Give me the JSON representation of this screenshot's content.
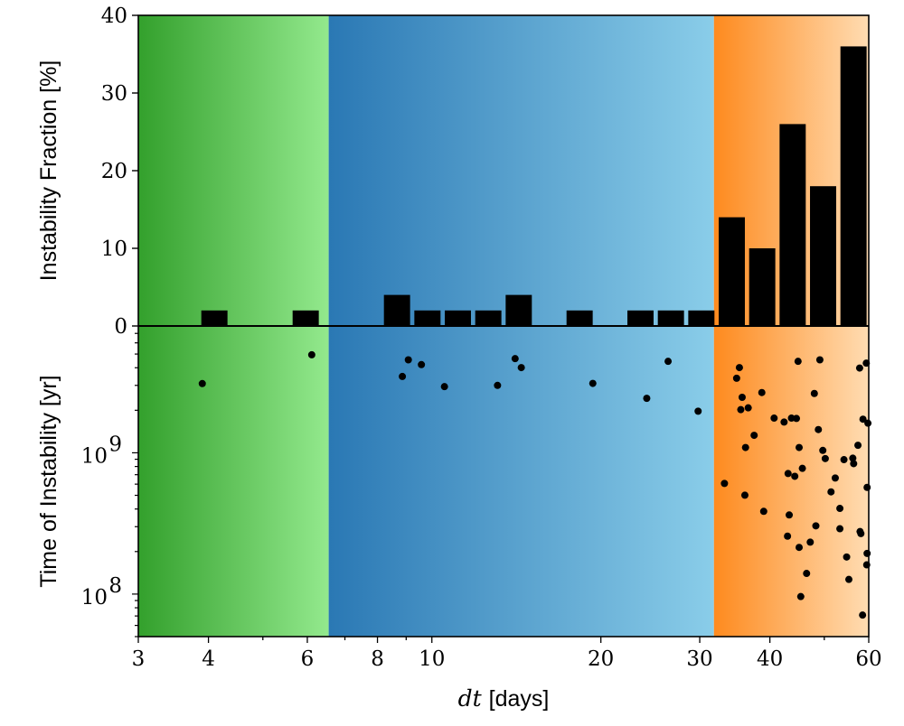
{
  "chart_data": [
    {
      "type": "bar",
      "panel": "top",
      "ylabel": "Instability Fraction [%]",
      "ylim": [
        0,
        40
      ],
      "yticks": [
        0,
        10,
        20,
        30,
        40
      ],
      "xscale": "log",
      "xlim": [
        3,
        60
      ],
      "bin_edges_log_spaced": {
        "from": 3,
        "to": 60,
        "count": 24
      },
      "values": [
        0,
        0,
        2,
        0,
        0,
        2,
        0,
        0,
        4,
        2,
        2,
        2,
        4,
        0,
        2,
        0,
        2,
        2,
        2,
        14,
        10,
        26,
        18,
        36
      ],
      "bar_color": "#000000"
    },
    {
      "type": "scatter",
      "panel": "bottom",
      "ylabel": "Time of Instability [yr]",
      "yscale": "log",
      "ylim": [
        50000000.0,
        7900000000.0
      ],
      "yticks": [
        {
          "value": 100000000.0,
          "base": "10",
          "exp": "8"
        },
        {
          "value": 1000000000.0,
          "base": "10",
          "exp": "9"
        }
      ],
      "xscale": "log",
      "xlim": [
        3,
        60
      ],
      "xticks": [
        "3",
        "4",
        "6",
        "8",
        "10",
        "20",
        "30",
        "40",
        "60"
      ],
      "xlabel_var": "dt",
      "xlabel_unit": "[days]",
      "point_color": "#000000",
      "points": [
        [
          3.9,
          3090000000.0
        ],
        [
          6.11,
          4940000000.0
        ],
        [
          8.86,
          3470000000.0
        ],
        [
          9.08,
          4550000000.0
        ],
        [
          9.58,
          4210000000.0
        ],
        [
          10.53,
          2940000000.0
        ],
        [
          13.09,
          3000000000.0
        ],
        [
          14.07,
          4640000000.0
        ],
        [
          14.43,
          4010000000.0
        ],
        [
          19.35,
          3100000000.0
        ],
        [
          24.14,
          2430000000.0
        ],
        [
          26.35,
          4440000000.0
        ],
        [
          29.8,
          1970000000.0
        ],
        [
          35.3,
          4010000000.0
        ],
        [
          34.9,
          3370000000.0
        ],
        [
          44.9,
          4440000000.0
        ],
        [
          49.1,
          4550000000.0
        ],
        [
          57.8,
          3980000000.0
        ],
        [
          59.4,
          4310000000.0
        ],
        [
          35.7,
          2470000000.0
        ],
        [
          38.7,
          2670000000.0
        ],
        [
          48.0,
          2630000000.0
        ],
        [
          35.5,
          2020000000.0
        ],
        [
          36.6,
          2080000000.0
        ],
        [
          40.7,
          1760000000.0
        ],
        [
          42.4,
          1650000000.0
        ],
        [
          43.7,
          1760000000.0
        ],
        [
          44.6,
          1750000000.0
        ],
        [
          58.6,
          1730000000.0
        ],
        [
          59.8,
          1620000000.0
        ],
        [
          48.8,
          1460000000.0
        ],
        [
          37.5,
          1330000000.0
        ],
        [
          36.2,
          1090000000.0
        ],
        [
          45.1,
          1090000000.0
        ],
        [
          49.7,
          1040000000.0
        ],
        [
          50.2,
          910000000.0
        ],
        [
          57.4,
          1130000000.0
        ],
        [
          54.2,
          894000000.0
        ],
        [
          56.2,
          916000000.0
        ],
        [
          56.4,
          838000000.0
        ],
        [
          45.7,
          776000000.0
        ],
        [
          43.1,
          713000000.0
        ],
        [
          44.3,
          682000000.0
        ],
        [
          52.3,
          663000000.0
        ],
        [
          33.2,
          607000000.0
        ],
        [
          59.6,
          569000000.0
        ],
        [
          36.1,
          501000000.0
        ],
        [
          51.4,
          529000000.0
        ],
        [
          39.0,
          385000000.0
        ],
        [
          43.3,
          363000000.0
        ],
        [
          53.3,
          404000000.0
        ],
        [
          48.3,
          304000000.0
        ],
        [
          53.3,
          290000000.0
        ],
        [
          57.9,
          277000000.0
        ],
        [
          58.1,
          268000000.0
        ],
        [
          43.0,
          257000000.0
        ],
        [
          47.2,
          233000000.0
        ],
        [
          45.1,
          214000000.0
        ],
        [
          54.8,
          183000000.0
        ],
        [
          59.6,
          194000000.0
        ],
        [
          59.5,
          161000000.0
        ],
        [
          46.5,
          140000000.0
        ],
        [
          55.3,
          127000000.0
        ],
        [
          45.4,
          96000000.0
        ],
        [
          58.5,
          71000000.0
        ]
      ]
    }
  ],
  "regions": [
    {
      "from": 3,
      "to": 6.55,
      "color_start": "#33a02c",
      "color_end": "#93e98d"
    },
    {
      "from": 6.55,
      "to": 31.8,
      "color_start": "#2a78b4",
      "color_end": "#8acde9"
    },
    {
      "from": 31.8,
      "to": 60,
      "color_start": "#fe8a1e",
      "color_end": "#ffdcb2"
    }
  ]
}
